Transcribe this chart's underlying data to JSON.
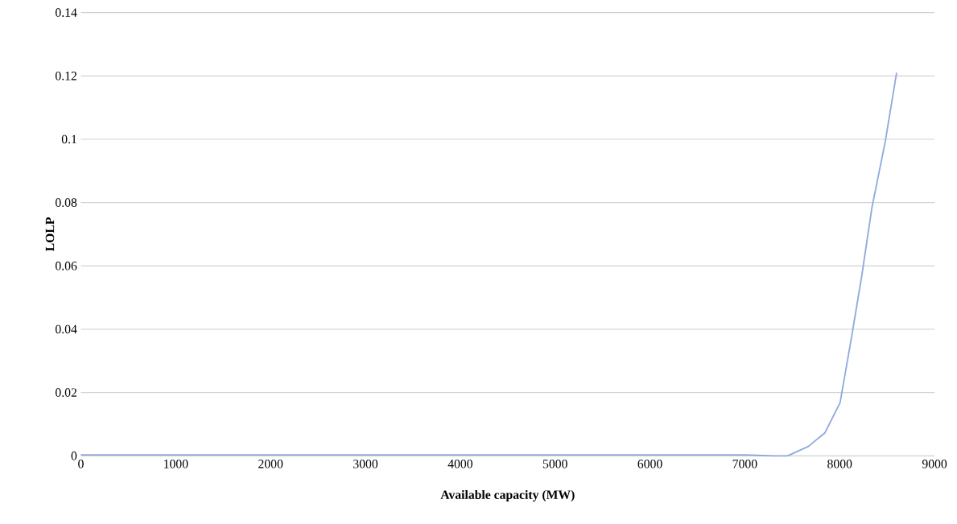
{
  "chart_data": {
    "type": "line",
    "xlabel": "Available capacity (MW)",
    "ylabel": "LOLP",
    "series": [
      {
        "color": "#8faadc",
        "x": [
          0,
          1000,
          2000,
          3000,
          4000,
          5000,
          6000,
          7000,
          7200,
          7300,
          7450,
          7670,
          7845,
          8004,
          8128,
          8234,
          8340,
          8482,
          8600
        ],
        "values": [
          0.0003,
          0.0003,
          0.0003,
          0.0003,
          0.0003,
          0.0003,
          0.0003,
          0.0003,
          0.0001,
          0,
          0,
          0.003,
          0.0073,
          0.0168,
          0.038,
          0.0571,
          0.0784,
          0.0995,
          0.121
        ]
      }
    ],
    "xlim": [
      0,
      9000
    ],
    "xticks": [
      0,
      1000,
      2000,
      3000,
      4000,
      5000,
      6000,
      7000,
      8000,
      9000
    ],
    "ylim": [
      0,
      0.14
    ],
    "yticks": [
      0,
      0.02,
      0.04,
      0.06,
      0.08,
      0.1,
      0.12,
      0.14
    ],
    "grid": "y",
    "marker": "none",
    "line_style": "solid"
  }
}
